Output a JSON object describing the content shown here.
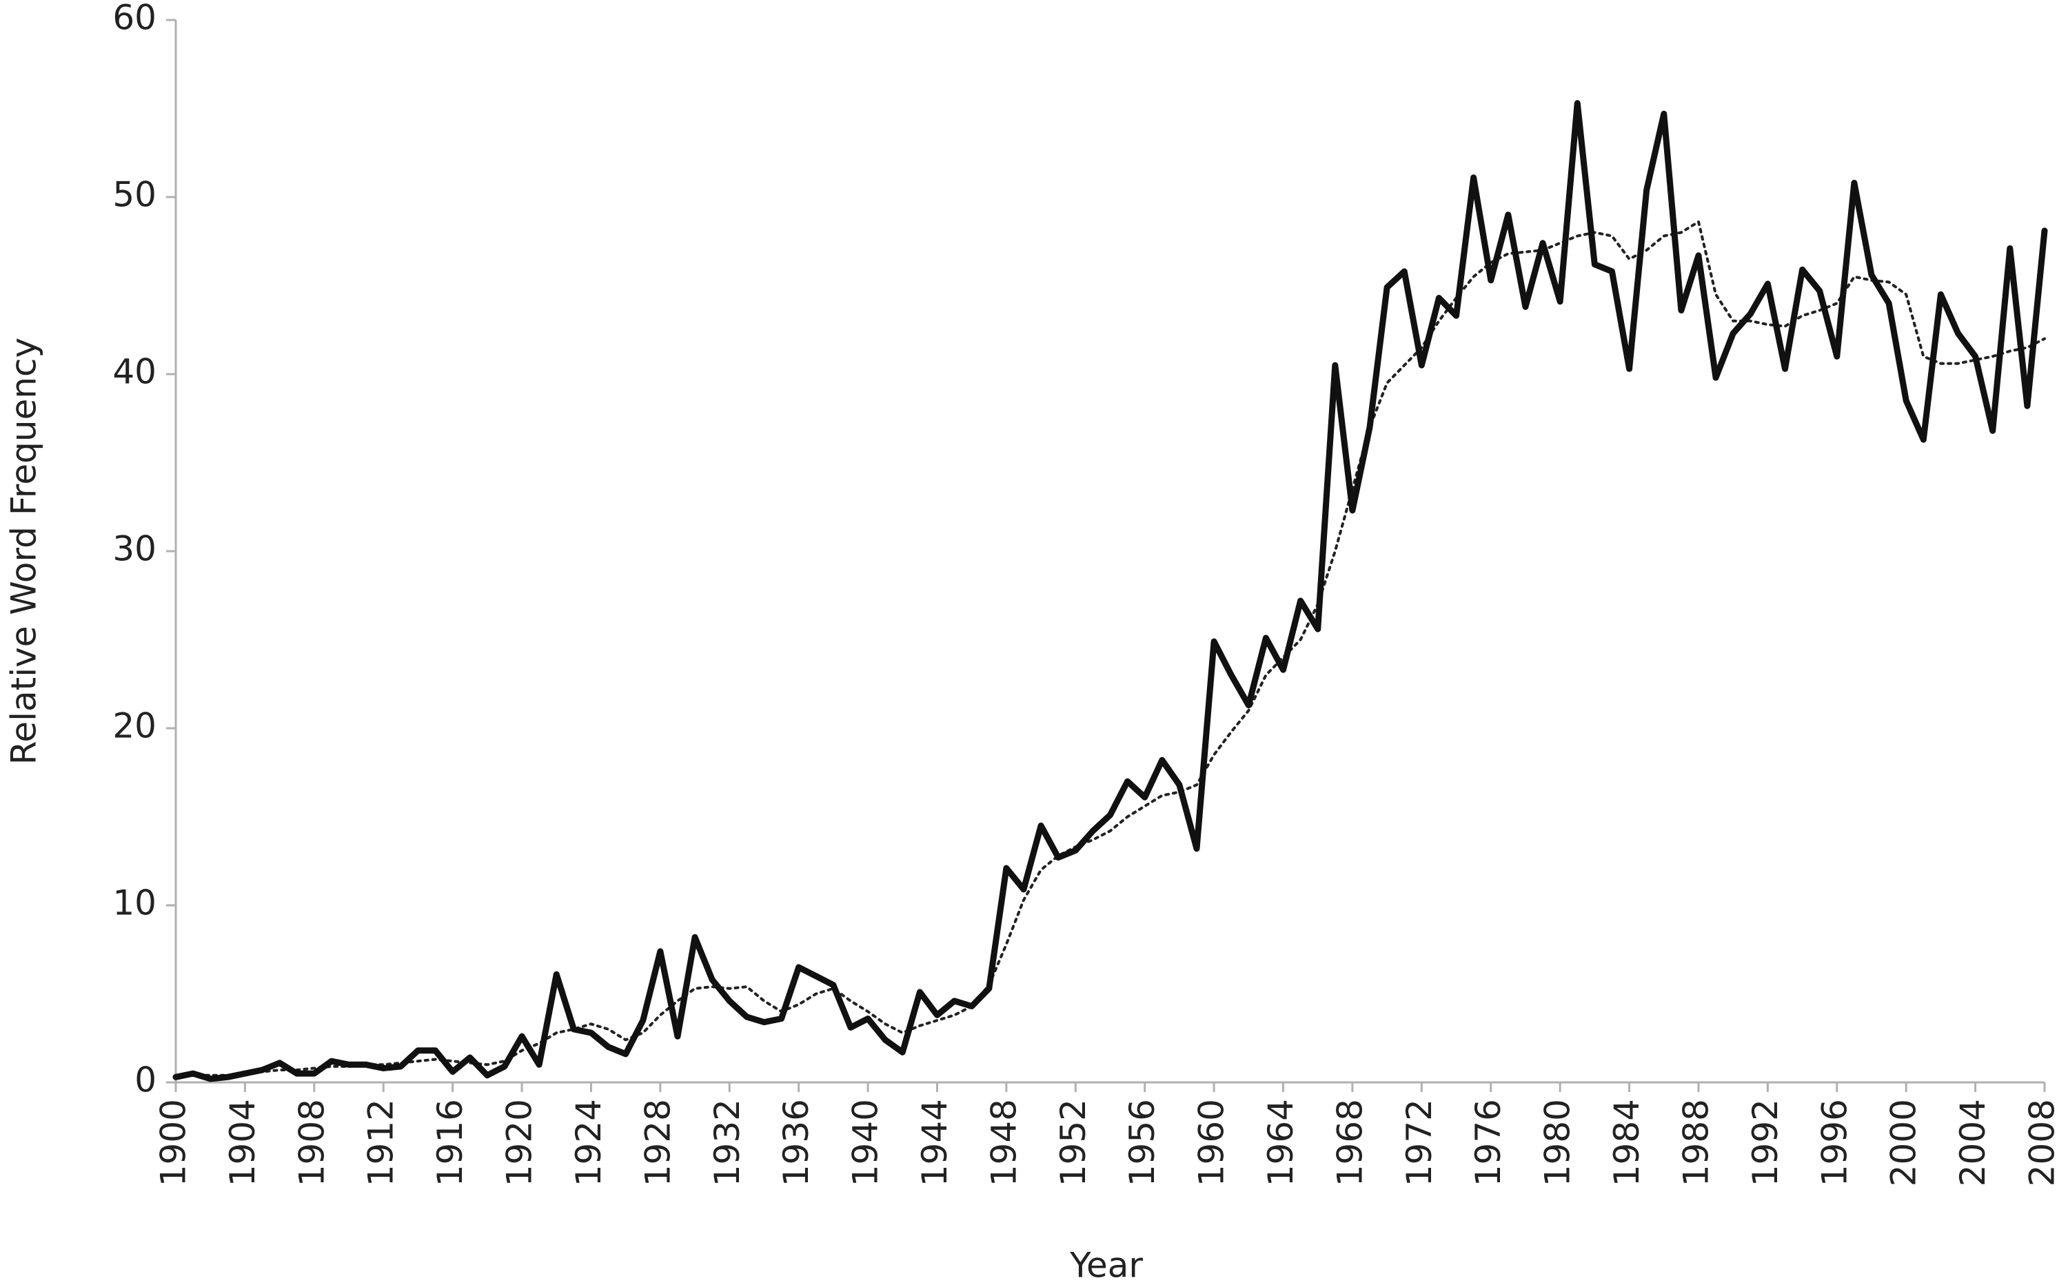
{
  "chart_data": {
    "type": "line",
    "x_label": "Year",
    "y_label": "Relative Word Frequency",
    "x": [
      1900,
      1901,
      1902,
      1903,
      1904,
      1905,
      1906,
      1907,
      1908,
      1909,
      1910,
      1911,
      1912,
      1913,
      1914,
      1915,
      1916,
      1917,
      1918,
      1919,
      1920,
      1921,
      1922,
      1923,
      1924,
      1925,
      1926,
      1927,
      1928,
      1929,
      1930,
      1931,
      1932,
      1933,
      1934,
      1935,
      1936,
      1937,
      1938,
      1939,
      1940,
      1941,
      1942,
      1943,
      1944,
      1945,
      1946,
      1947,
      1948,
      1949,
      1950,
      1951,
      1952,
      1953,
      1954,
      1955,
      1956,
      1957,
      1958,
      1959,
      1960,
      1961,
      1962,
      1963,
      1964,
      1965,
      1966,
      1967,
      1968,
      1969,
      1970,
      1971,
      1972,
      1973,
      1974,
      1975,
      1976,
      1977,
      1978,
      1979,
      1980,
      1981,
      1982,
      1983,
      1984,
      1985,
      1986,
      1987,
      1988,
      1989,
      1990,
      1991,
      1992,
      1993,
      1994,
      1995,
      1996,
      1997,
      1998,
      1999,
      2000,
      2001,
      2002,
      2003,
      2004,
      2005,
      2006,
      2007,
      2008
    ],
    "series": [
      {
        "color": "#111111",
        "style": "solid",
        "values": [
          0.3,
          0.5,
          0.2,
          0.3,
          0.5,
          0.7,
          1.1,
          0.5,
          0.5,
          1.2,
          1.0,
          1.0,
          0.8,
          0.9,
          1.8,
          1.8,
          0.6,
          1.4,
          0.4,
          0.9,
          2.6,
          1.0,
          6.1,
          3.0,
          2.8,
          2.0,
          1.6,
          3.5,
          7.4,
          2.6,
          8.2,
          5.8,
          4.6,
          3.7,
          3.4,
          3.6,
          6.5,
          6.0,
          5.5,
          3.1,
          3.6,
          2.4,
          1.7,
          5.1,
          3.8,
          4.6,
          4.3,
          5.3,
          12.1,
          10.9,
          14.5,
          12.7,
          13.1,
          14.2,
          15.1,
          17.0,
          16.1,
          18.2,
          16.8,
          13.2,
          24.9,
          23.0,
          21.3,
          25.1,
          23.3,
          27.2,
          25.6,
          40.5,
          32.3,
          37.0,
          44.9,
          45.8,
          40.5,
          44.3,
          43.3,
          51.1,
          45.3,
          49.0,
          43.8,
          47.4,
          44.1,
          55.3,
          46.2,
          45.8,
          40.3,
          50.4,
          54.7,
          43.6,
          46.7,
          39.8,
          42.3,
          43.4,
          45.1,
          40.3,
          45.9,
          44.7,
          41.0,
          50.8,
          45.6,
          44.0,
          38.5,
          36.3,
          44.5,
          42.3,
          41.0,
          36.8,
          47.1,
          38.2,
          48.1
        ]
      },
      {
        "color": "#222222",
        "style": "dotted",
        "values": [
          0.3,
          0.4,
          0.4,
          0.4,
          0.5,
          0.6,
          0.7,
          0.7,
          0.8,
          0.9,
          0.9,
          1.0,
          1.0,
          1.1,
          1.2,
          1.3,
          1.2,
          1.1,
          1.0,
          1.2,
          1.8,
          2.2,
          2.8,
          3.0,
          3.3,
          3.0,
          2.4,
          2.8,
          3.8,
          4.6,
          5.3,
          5.4,
          5.3,
          5.4,
          4.6,
          4.0,
          4.4,
          5.0,
          5.3,
          4.6,
          4.0,
          3.3,
          2.8,
          3.2,
          3.5,
          3.8,
          4.3,
          5.5,
          7.8,
          10.3,
          12.0,
          12.8,
          13.3,
          13.7,
          14.2,
          15.0,
          15.6,
          16.2,
          16.4,
          16.8,
          18.5,
          19.8,
          21.0,
          23.0,
          24.0,
          25.0,
          27.0,
          30.0,
          33.5,
          37.0,
          39.5,
          40.5,
          41.5,
          43.0,
          44.3,
          45.5,
          46.3,
          46.8,
          46.9,
          47.0,
          47.4,
          47.8,
          48.0,
          47.8,
          46.5,
          47.0,
          47.8,
          48.0,
          48.6,
          44.5,
          43.0,
          43.0,
          42.8,
          42.7,
          43.3,
          43.6,
          44.0,
          45.5,
          45.3,
          45.2,
          44.5,
          41.0,
          40.6,
          40.6,
          40.8,
          41.0,
          41.3,
          41.5,
          42.0
        ]
      }
    ],
    "xlim": [
      1900,
      2008
    ],
    "xticks": [
      1900,
      1904,
      1908,
      1912,
      1916,
      1920,
      1924,
      1928,
      1932,
      1936,
      1940,
      1944,
      1948,
      1952,
      1956,
      1960,
      1964,
      1968,
      1972,
      1976,
      1980,
      1984,
      1988,
      1992,
      1996,
      2000,
      2004,
      2008
    ],
    "ylim": [
      0,
      60
    ],
    "yticks": [
      0,
      10,
      20,
      30,
      40,
      50,
      60
    ],
    "grid": false
  }
}
